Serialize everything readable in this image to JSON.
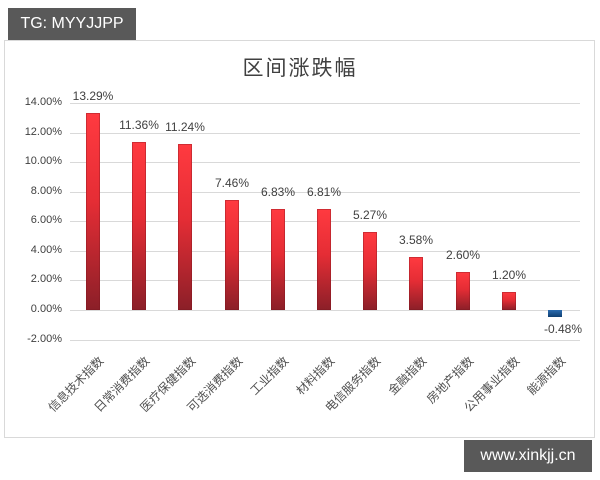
{
  "badge": {
    "text": "TG: MYYJJPP"
  },
  "watermark": {
    "text": "www.xinkjj.cn"
  },
  "chart_data": {
    "type": "bar",
    "title": "区间涨跌幅",
    "xlabel": "",
    "ylabel": "",
    "ylim": [
      -2,
      14
    ],
    "yticks": [
      "14.00%",
      "12.00%",
      "10.00%",
      "8.00%",
      "6.00%",
      "4.00%",
      "2.00%",
      "0.00%",
      "-2.00%"
    ],
    "grid": true,
    "legend": "none",
    "categories": [
      "信息技术指数",
      "日常消费指数",
      "医疗保健指数",
      "可选消费指数",
      "工业指数",
      "材料指数",
      "电信服务指数",
      "金融指数",
      "房地产指数",
      "公用事业指数",
      "能源指数"
    ],
    "values": [
      13.29,
      11.36,
      11.24,
      7.46,
      6.83,
      6.81,
      5.27,
      3.58,
      2.6,
      1.2,
      -0.48
    ],
    "value_labels": [
      "13.29%",
      "11.36%",
      "11.24%",
      "7.46%",
      "6.83%",
      "6.81%",
      "5.27%",
      "3.58%",
      "2.60%",
      "1.20%",
      "-0.48%"
    ],
    "colors": {
      "positive": "#e52d35",
      "negative": "#1f5fa0"
    }
  }
}
